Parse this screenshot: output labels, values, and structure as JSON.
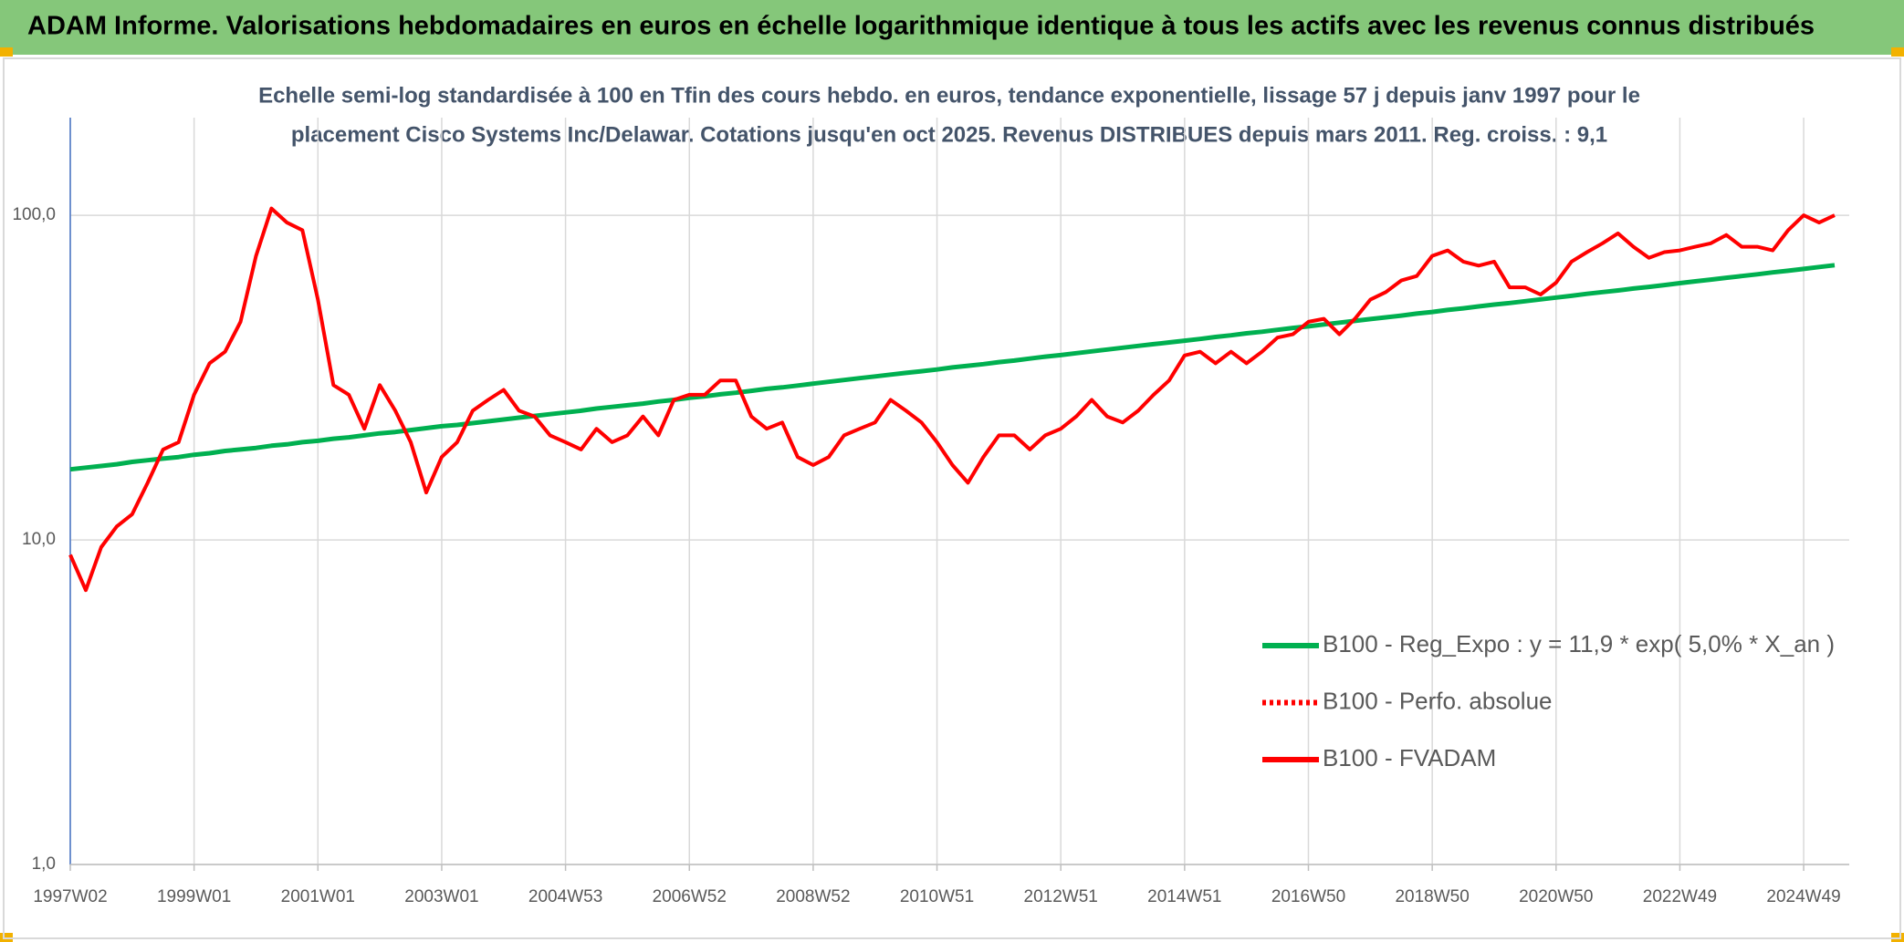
{
  "chart_data": {
    "type": "line",
    "title": "ADAM Informe. Valorisations hebdomadaires en euros en échelle logarithmique identique à tous les actifs avec les revenus connus distribués",
    "subtitle": [
      "Echelle semi-log standardisée à 100 en Tfin des cours hebdo. en euros, tendance exponentielle, lissage 57 j depuis janv 1997 pour le",
      "placement Cisco Systems Inc/Delawar. Cotations jusqu'en oct 2025. Revenus DISTRIBUES depuis mars 2011. Reg. croiss. : 9,1"
    ],
    "categories": [
      "1997W02",
      null,
      null,
      null,
      null,
      null,
      null,
      null,
      "1999W01",
      null,
      null,
      null,
      null,
      null,
      null,
      null,
      "2001W01",
      null,
      null,
      null,
      null,
      null,
      null,
      null,
      "2003W01",
      null,
      null,
      null,
      null,
      null,
      null,
      null,
      "2004W53",
      null,
      null,
      null,
      null,
      null,
      null,
      null,
      "2006W52",
      null,
      null,
      null,
      null,
      null,
      null,
      null,
      "2008W52",
      null,
      null,
      null,
      null,
      null,
      null,
      null,
      "2010W51",
      null,
      null,
      null,
      null,
      null,
      null,
      null,
      "2012W51",
      null,
      null,
      null,
      null,
      null,
      null,
      null,
      "2014W51",
      null,
      null,
      null,
      null,
      null,
      null,
      null,
      "2016W50",
      null,
      null,
      null,
      null,
      null,
      null,
      null,
      "2018W50",
      null,
      null,
      null,
      null,
      null,
      null,
      null,
      "2020W50",
      null,
      null,
      null,
      null,
      null,
      null,
      null,
      "2022W49",
      null,
      null,
      null,
      null,
      null,
      null,
      null,
      "2024W49",
      null,
      null
    ],
    "series": [
      {
        "name": "B100 - Reg_Expo : y = 11,9 * exp( 5,0% *  X_an )",
        "color": "#00b050",
        "line_style": "solid",
        "values": [
          16.5,
          16.7,
          16.9,
          17.1,
          17.4,
          17.6,
          17.8,
          18.0,
          18.3,
          18.5,
          18.8,
          19.0,
          19.2,
          19.5,
          19.7,
          20.0,
          20.2,
          20.5,
          20.7,
          21.0,
          21.3,
          21.5,
          21.8,
          22.1,
          22.4,
          22.6,
          22.9,
          23.2,
          23.5,
          23.8,
          24.1,
          24.4,
          24.7,
          25.0,
          25.4,
          25.7,
          26.0,
          26.3,
          26.7,
          27.0,
          27.4,
          27.7,
          28.1,
          28.4,
          28.8,
          29.2,
          29.5,
          29.9,
          30.3,
          30.7,
          31.1,
          31.5,
          31.9,
          32.3,
          32.7,
          33.1,
          33.5,
          34.0,
          34.4,
          34.8,
          35.3,
          35.7,
          36.2,
          36.7,
          37.1,
          37.6,
          38.1,
          38.6,
          39.1,
          39.6,
          40.1,
          40.6,
          41.1,
          41.6,
          42.2,
          42.7,
          43.3,
          43.8,
          44.4,
          45.0,
          45.5,
          46.1,
          46.7,
          47.3,
          47.9,
          48.5,
          49.1,
          49.8,
          50.4,
          51.1,
          51.7,
          52.4,
          53.1,
          53.7,
          54.4,
          55.1,
          55.8,
          56.5,
          57.3,
          58.0,
          58.7,
          59.5,
          60.2,
          61.0,
          61.8,
          62.6,
          63.4,
          64.2,
          65.0,
          65.8,
          66.7,
          67.5,
          68.4,
          69.3,
          70.2
        ]
      },
      {
        "name": "B100 - Perfo. absolue",
        "color": "#ff0000",
        "line_style": "dotted",
        "values": [
          null,
          null,
          null,
          null,
          null,
          null,
          null,
          null,
          null,
          null,
          null,
          null,
          null,
          null,
          null,
          null,
          null,
          null,
          null,
          null,
          null,
          null,
          null,
          null,
          null,
          null,
          null,
          null,
          null,
          null,
          null,
          null,
          null,
          null,
          null,
          null,
          null,
          null,
          null,
          null,
          null,
          null,
          null,
          null,
          null,
          null,
          null,
          null,
          null,
          null,
          null,
          null,
          null,
          null,
          null,
          null,
          null,
          null,
          null,
          null,
          null,
          null,
          null,
          null,
          null,
          null,
          null,
          null,
          null,
          null,
          null,
          null,
          null,
          null,
          null,
          null,
          null,
          null,
          null,
          null,
          null,
          null,
          null,
          null,
          null,
          null,
          null,
          null,
          null,
          null,
          null,
          null,
          null,
          null,
          null,
          null,
          null,
          null,
          null,
          null,
          null,
          null,
          null,
          null,
          null,
          null,
          null,
          null,
          null,
          null,
          null,
          null,
          null,
          null,
          null
        ]
      },
      {
        "name": "B100 - FVADAM",
        "color": "#ff0000",
        "line_style": "solid",
        "values": [
          9,
          7,
          9.5,
          11,
          12,
          15,
          19,
          20,
          28,
          35,
          38,
          47,
          75,
          105,
          95,
          90,
          55,
          30,
          28,
          22,
          30,
          25,
          20,
          14,
          18,
          20,
          25,
          27,
          29,
          25,
          24,
          21,
          20,
          19,
          22,
          20,
          21,
          24,
          21,
          27,
          28,
          28,
          31,
          31,
          24,
          22,
          23,
          18,
          17,
          18,
          21,
          22,
          23,
          27,
          25,
          23,
          20,
          17,
          15,
          18,
          21,
          21,
          19,
          21,
          22,
          24,
          27,
          24,
          23,
          25,
          28,
          31,
          37,
          38,
          35,
          38,
          35,
          38,
          42,
          43,
          47,
          48,
          43,
          48,
          55,
          58,
          63,
          65,
          75,
          78,
          72,
          70,
          72,
          60,
          60,
          57,
          62,
          72,
          77,
          82,
          88,
          80,
          74,
          77,
          78,
          80,
          82,
          87,
          80,
          80,
          78,
          90,
          100,
          95,
          100
        ]
      }
    ],
    "log_scale": true,
    "ylim": [
      1,
      200
    ],
    "yticks": [
      {
        "value": 1,
        "label": "1,0"
      },
      {
        "value": 10,
        "label": "10,0"
      },
      {
        "value": 100,
        "label": "100,0"
      }
    ],
    "grid": true,
    "legend_position": "right"
  }
}
